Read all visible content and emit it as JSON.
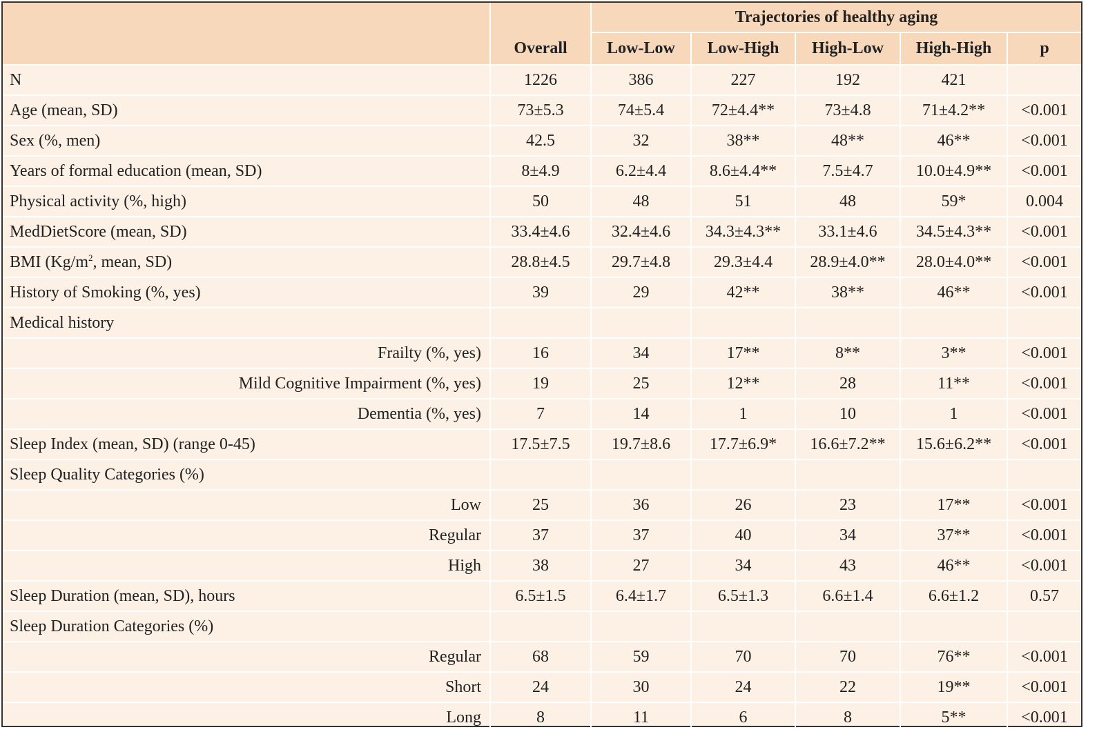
{
  "header": {
    "group_title": "Trajectories of healthy aging",
    "columns": [
      "Overall",
      "Low-Low",
      "Low-High",
      "High-Low",
      "High-High",
      "p"
    ]
  },
  "rows": [
    {
      "label": "N",
      "sub": false,
      "values": [
        "1226",
        "386",
        "227",
        "192",
        "421",
        ""
      ]
    },
    {
      "label": "Age (mean, SD)",
      "sub": false,
      "values": [
        "73±5.3",
        "74±5.4",
        "72±4.4**",
        "73±4.8",
        "71±4.2**",
        "<0.001"
      ]
    },
    {
      "label": "Sex (%, men)",
      "sub": false,
      "values": [
        "42.5",
        "32",
        "38**",
        "48**",
        "46**",
        "<0.001"
      ]
    },
    {
      "label": "Years of formal education (mean, SD)",
      "sub": false,
      "values": [
        "8±4.9",
        "6.2±4.4",
        "8.6±4.4**",
        "7.5±4.7",
        "10.0±4.9**",
        "<0.001"
      ]
    },
    {
      "label": "Physical activity (%, high)",
      "sub": false,
      "values": [
        "50",
        "48",
        "51",
        "48",
        "59*",
        "0.004"
      ]
    },
    {
      "label": "MedDietScore (mean, SD)",
      "sub": false,
      "values": [
        "33.4±4.6",
        "32.4±4.6",
        "34.3±4.3**",
        "33.1±4.6",
        "34.5±4.3**",
        "<0.001"
      ]
    },
    {
      "label": "BMI (Kg/m",
      "label_sup": "2",
      "label_after": ", mean, SD)",
      "sub": false,
      "values": [
        "28.8±4.5",
        "29.7±4.8",
        "29.3±4.4",
        "28.9±4.0**",
        "28.0±4.0**",
        "<0.001"
      ]
    },
    {
      "label": "History of Smoking (%, yes)",
      "sub": false,
      "values": [
        "39",
        "29",
        "42**",
        "38**",
        "46**",
        "<0.001"
      ]
    },
    {
      "label": "Medical history",
      "sub": false,
      "values": [
        "",
        "",
        "",
        "",
        "",
        ""
      ]
    },
    {
      "label": "Frailty (%, yes)",
      "sub": true,
      "values": [
        "16",
        "34",
        "17**",
        "8**",
        "3**",
        "<0.001"
      ]
    },
    {
      "label": "Mild Cognitive Impairment (%, yes)",
      "sub": true,
      "values": [
        "19",
        "25",
        "12**",
        "28",
        "11**",
        "<0.001"
      ]
    },
    {
      "label": "Dementia (%, yes)",
      "sub": true,
      "values": [
        "7",
        "14",
        "1",
        "10",
        "1",
        "<0.001"
      ]
    },
    {
      "label": "Sleep Index (mean, SD) (range 0-45)",
      "sub": false,
      "values": [
        "17.5±7.5",
        "19.7±8.6",
        "17.7±6.9*",
        "16.6±7.2**",
        "15.6±6.2**",
        "<0.001"
      ]
    },
    {
      "label": "Sleep Quality Categories (%)",
      "sub": false,
      "values": [
        "",
        "",
        "",
        "",
        "",
        ""
      ]
    },
    {
      "label": "Low",
      "sub": true,
      "values": [
        "25",
        "36",
        "26",
        "23",
        "17**",
        "<0.001"
      ]
    },
    {
      "label": "Regular",
      "sub": true,
      "values": [
        "37",
        "37",
        "40",
        "34",
        "37**",
        "<0.001"
      ]
    },
    {
      "label": "High",
      "sub": true,
      "values": [
        "38",
        "27",
        "34",
        "43",
        "46**",
        "<0.001"
      ]
    },
    {
      "label": "Sleep Duration (mean, SD), hours",
      "sub": false,
      "values": [
        "6.5±1.5",
        "6.4±1.7",
        "6.5±1.3",
        "6.6±1.4",
        "6.6±1.2",
        "0.57"
      ]
    },
    {
      "label": "Sleep Duration Categories (%)",
      "sub": false,
      "values": [
        "",
        "",
        "",
        "",
        "",
        ""
      ]
    },
    {
      "label": "Regular",
      "sub": true,
      "values": [
        "68",
        "59",
        "70",
        "70",
        "76**",
        "<0.001"
      ]
    },
    {
      "label": "Short",
      "sub": true,
      "values": [
        "24",
        "30",
        "24",
        "22",
        "19**",
        "<0.001"
      ]
    },
    {
      "label": "Long",
      "sub": true,
      "values": [
        "8",
        "11",
        "6",
        "8",
        "5**",
        "<0.001"
      ]
    }
  ]
}
